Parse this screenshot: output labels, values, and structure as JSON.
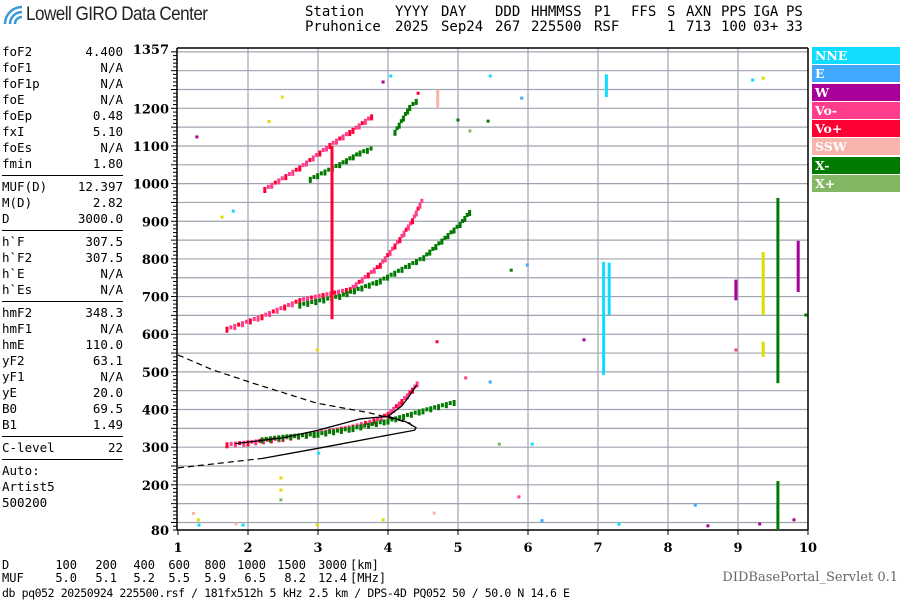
{
  "header": {
    "logo_text": "Lowell GIRO Data Center",
    "columns": [
      {
        "label": "Station",
        "value": "Pruhonice"
      },
      {
        "label": "YYYY",
        "value": "2025"
      },
      {
        "label": "DAY",
        "value": "Sep24"
      },
      {
        "label": "DDD",
        "value": "267"
      },
      {
        "label": "HHMMSS",
        "value": "225500"
      },
      {
        "label": "P1",
        "value": "RSF"
      },
      {
        "label": "FFS",
        "value": ""
      },
      {
        "label": "S",
        "value": "1"
      },
      {
        "label": "AXN",
        "value": "713"
      },
      {
        "label": "PPS",
        "value": "100"
      },
      {
        "label": "IGA",
        "value": "03+"
      },
      {
        "label": "PS",
        "value": "33"
      }
    ]
  },
  "parameters": {
    "group1": [
      [
        "foF2",
        "4.400"
      ],
      [
        "foF1",
        "N/A"
      ],
      [
        "foF1p",
        "N/A"
      ],
      [
        "foE",
        "N/A"
      ],
      [
        "foEp",
        "0.48"
      ],
      [
        "fxI",
        "5.10"
      ],
      [
        "foEs",
        "N/A"
      ],
      [
        "fmin",
        "1.80"
      ]
    ],
    "group2": [
      [
        "MUF(D)",
        "12.397"
      ],
      [
        "M(D)",
        "2.82"
      ],
      [
        "D",
        "3000.0"
      ]
    ],
    "group3": [
      [
        "h`F",
        "307.5"
      ],
      [
        "h`F2",
        "307.5"
      ],
      [
        "h`E",
        "N/A"
      ],
      [
        "h`Es",
        "N/A"
      ]
    ],
    "group4": [
      [
        "hmF2",
        "348.3"
      ],
      [
        "hmF1",
        "N/A"
      ],
      [
        "hmE",
        "110.0"
      ],
      [
        "yF2",
        "63.1"
      ],
      [
        "yF1",
        "N/A"
      ],
      [
        "yE",
        "20.0"
      ],
      [
        "B0",
        "69.5"
      ],
      [
        "B1",
        "1.49"
      ]
    ],
    "group5": [
      [
        "C-level",
        "22"
      ]
    ],
    "autoscaling": [
      "Auto:",
      "Artist5",
      "500200"
    ]
  },
  "legend": [
    {
      "label": "NNE",
      "color": "#10dcff"
    },
    {
      "label": "E",
      "color": "#40a8ff"
    },
    {
      "label": "W",
      "color": "#aa0099"
    },
    {
      "label": "Vo-",
      "color": "#ff3d8c"
    },
    {
      "label": "Vo+",
      "color": "#ff0033"
    },
    {
      "label": "SSW",
      "color": "#f8b4ac"
    },
    {
      "label": "X-",
      "color": "#007a00"
    },
    {
      "label": "X+",
      "color": "#82b864"
    }
  ],
  "muf_table": {
    "d_label": "D",
    "muf_label": "MUF",
    "d_values": [
      "100",
      "200",
      "400",
      "600",
      "800",
      "1000",
      "1500",
      "3000"
    ],
    "muf_values": [
      "5.0",
      "5.1",
      "5.2",
      "5.5",
      "5.9",
      "6.5",
      "8.2",
      "12.4"
    ],
    "d_unit": "[km]",
    "muf_unit": "[MHz]"
  },
  "footer": {
    "file_info": "db pq052 20250924 225500.rsf / 181fx512h 5 kHz 2.5 km / DPS-4D PQ052 50 / 50.0 N 14.6 E",
    "servlet": "DIDBasePortal_Servlet 0.1"
  },
  "chart_data": {
    "type": "scatter",
    "title": "",
    "xlabel": "",
    "ylabel": "",
    "xlim": [
      1,
      10
    ],
    "ylim": [
      80,
      1357
    ],
    "x_ticks": [
      "1",
      "2",
      "3",
      "4",
      "5",
      "6",
      "7",
      "8",
      "9",
      "10"
    ],
    "y_ticks": [
      "1357",
      "1200",
      "1100",
      "1000",
      "900",
      "800",
      "700",
      "600",
      "500",
      "400",
      "300",
      "200",
      "80"
    ],
    "grid": true,
    "legend_position": "right",
    "traces": [
      {
        "mode": "Vo-",
        "color": "#ff3d8c",
        "points": [
          [
            1.7,
            305
          ],
          [
            2.0,
            310
          ],
          [
            2.5,
            322
          ],
          [
            3.0,
            335
          ],
          [
            3.5,
            352
          ],
          [
            3.8,
            368
          ],
          [
            4.0,
            385
          ],
          [
            4.2,
            420
          ],
          [
            4.35,
            450
          ],
          [
            4.45,
            475
          ]
        ]
      },
      {
        "mode": "X-",
        "color": "#007a00",
        "points": [
          [
            2.2,
            318
          ],
          [
            2.5,
            325
          ],
          [
            3.0,
            333
          ],
          [
            3.5,
            348
          ],
          [
            4.0,
            368
          ],
          [
            4.5,
            395
          ],
          [
            5.0,
            420
          ]
        ]
      },
      {
        "mode": "Vo-",
        "color": "#ff3d8c",
        "points": [
          [
            1.7,
            612
          ],
          [
            2.2,
            645
          ],
          [
            2.74,
            688
          ],
          [
            3.46,
            717
          ],
          [
            3.89,
            782
          ],
          [
            4.17,
            850
          ],
          [
            4.35,
            900
          ],
          [
            4.51,
            962
          ]
        ]
      },
      {
        "mode": "X-",
        "color": "#007a00",
        "points": [
          [
            2.74,
            676
          ],
          [
            3.31,
            699
          ],
          [
            3.89,
            740
          ],
          [
            4.51,
            802
          ],
          [
            5.03,
            890
          ],
          [
            5.2,
            930
          ]
        ]
      },
      {
        "mode": "Vo-",
        "color": "#ff3d8c",
        "points": [
          [
            2.24,
            983
          ],
          [
            2.74,
            1040
          ],
          [
            3.17,
            1100
          ],
          [
            3.5,
            1140
          ],
          [
            3.81,
            1182
          ]
        ]
      },
      {
        "mode": "X-",
        "color": "#007a00",
        "points": [
          [
            2.89,
            1010
          ],
          [
            3.31,
            1049
          ],
          [
            3.6,
            1080
          ],
          [
            3.81,
            1094
          ]
        ]
      },
      {
        "mode": "X-",
        "color": "#007a00",
        "points": [
          [
            4.1,
            1135
          ],
          [
            4.31,
            1201
          ],
          [
            4.45,
            1225
          ]
        ]
      }
    ],
    "spreads": [
      {
        "f": 3.2,
        "h_from": 640,
        "h_to": 1100,
        "color": "#ff0033"
      },
      {
        "f": 7.08,
        "h_from": 492,
        "h_to": 792,
        "color": "#10dcff"
      },
      {
        "f": 7.16,
        "h_from": 651,
        "h_to": 790,
        "color": "#10dcff"
      },
      {
        "f": 7.12,
        "h_from": 1230,
        "h_to": 1290,
        "color": "#10dcff"
      },
      {
        "f": 4.71,
        "h_from": 1200,
        "h_to": 1250,
        "color": "#f8b4ac"
      },
      {
        "f": 9.36,
        "h_from": 651,
        "h_to": 818,
        "color": "#dddd00"
      },
      {
        "f": 9.36,
        "h_from": 540,
        "h_to": 580,
        "color": "#dddd00"
      },
      {
        "f": 9.57,
        "h_from": 470,
        "h_to": 962,
        "color": "#007a00"
      },
      {
        "f": 9.57,
        "h_from": 80,
        "h_to": 210,
        "color": "#007a00"
      },
      {
        "f": 9.86,
        "h_from": 712,
        "h_to": 848,
        "color": "#aa0099"
      },
      {
        "f": 8.97,
        "h_from": 690,
        "h_to": 745,
        "color": "#aa0099"
      }
    ],
    "scatter": [
      [
        1.27,
        1124,
        "#aa0099"
      ],
      [
        1.79,
        927,
        "#10dcff"
      ],
      [
        2.49,
        1230,
        "#dddd00"
      ],
      [
        3.93,
        1270,
        "#aa0099"
      ],
      [
        4.04,
        1286,
        "#10dcff"
      ],
      [
        5.46,
        1286,
        "#10dcff"
      ],
      [
        5.91,
        1227,
        "#40a8ff"
      ],
      [
        5.0,
        1169,
        "#007a00"
      ],
      [
        5.43,
        1166,
        "#007a00"
      ],
      [
        5.99,
        784,
        "#40a8ff"
      ],
      [
        5.76,
        770,
        "#007a00"
      ],
      [
        4.7,
        580,
        "#ff0033"
      ],
      [
        5.46,
        473,
        "#40a8ff"
      ],
      [
        5.11,
        484,
        "#ff3d8c"
      ],
      [
        6.8,
        585,
        "#aa0099"
      ],
      [
        5.59,
        308,
        "#82b864"
      ],
      [
        5.87,
        168,
        "#ff3d8c"
      ],
      [
        6.06,
        308,
        "#10dcff"
      ],
      [
        2.47,
        218,
        "#dddd00"
      ],
      [
        2.47,
        186,
        "#dddd00"
      ],
      [
        2.47,
        160,
        "#82b864"
      ],
      [
        2.99,
        558,
        "#dddd00"
      ],
      [
        2.99,
        93,
        "#dddd00"
      ],
      [
        4.66,
        125,
        "#f8b4ac"
      ],
      [
        3.93,
        107,
        "#dddd00"
      ],
      [
        9.31,
        96,
        "#aa0099"
      ],
      [
        8.57,
        91,
        "#aa0099"
      ],
      [
        8.39,
        146,
        "#40a8ff"
      ],
      [
        1.29,
        107,
        "#dddd00"
      ],
      [
        1.3,
        93,
        "#10dcff"
      ],
      [
        1.63,
        911,
        "#dddd00"
      ],
      [
        9.21,
        1275,
        "#10dcff"
      ],
      [
        9.36,
        1280,
        "#dddd00"
      ],
      [
        9.97,
        651,
        "#007a00"
      ],
      [
        8.97,
        558,
        "#ff3d8c"
      ],
      [
        9.8,
        107,
        "#aa0099"
      ],
      [
        1.22,
        124,
        "#f8b4ac"
      ],
      [
        1.83,
        96,
        "#f8b4ac"
      ],
      [
        1.93,
        93,
        "#10dcff"
      ],
      [
        3.01,
        284,
        "#10dcff"
      ],
      [
        2.3,
        1165,
        "#dddd00"
      ],
      [
        5.17,
        1140,
        "#82b864"
      ],
      [
        4.43,
        1240,
        "#ff0033"
      ],
      [
        6.2,
        105,
        "#40a8ff"
      ],
      [
        7.3,
        95,
        "#10dcff"
      ]
    ],
    "profile": {
      "solid": [
        [
          2.2,
          270
        ],
        [
          3.0,
          297
        ],
        [
          3.8,
          325
        ],
        [
          4.38,
          345
        ],
        [
          4.4,
          352
        ],
        [
          4.25,
          368
        ],
        [
          4.0,
          382
        ],
        [
          3.6,
          375
        ],
        [
          3.0,
          345
        ],
        [
          2.5,
          325
        ],
        [
          1.81,
          309
        ]
      ],
      "solid_upper": [
        [
          4.0,
          382
        ],
        [
          4.2,
          410
        ],
        [
          4.3,
          435
        ],
        [
          4.41,
          465
        ]
      ],
      "dashed_bottom": [
        [
          1.0,
          245
        ],
        [
          2.2,
          270
        ]
      ],
      "dashed_top": [
        [
          1.0,
          545
        ],
        [
          1.5,
          505
        ],
        [
          2.07,
          470
        ],
        [
          2.98,
          417
        ],
        [
          3.74,
          391
        ],
        [
          4.31,
          364
        ],
        [
          4.39,
          346
        ]
      ]
    }
  }
}
